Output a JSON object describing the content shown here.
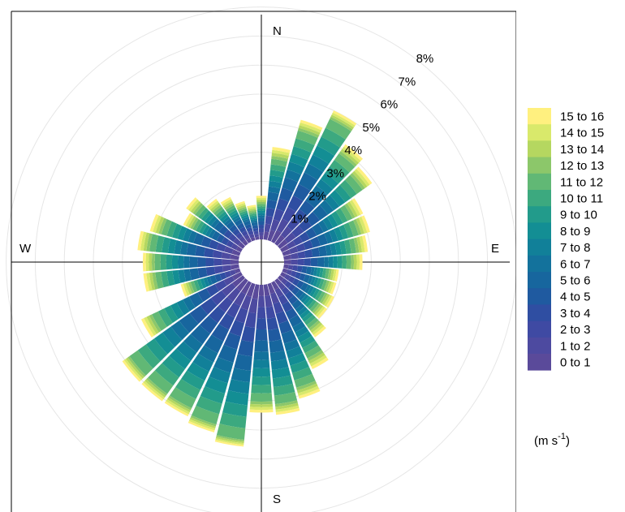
{
  "chart_data": {
    "type": "windrose",
    "compass_labels": {
      "north": "N",
      "south": "S",
      "east": "E",
      "west": "W"
    },
    "radial_axis": {
      "ticks": [
        1,
        2,
        3,
        4,
        5,
        6,
        7,
        8
      ],
      "labels": [
        "1%",
        "2%",
        "3%",
        "4%",
        "5%",
        "6%",
        "7%",
        "8%"
      ],
      "max": 8
    },
    "speed_bins": [
      "0 to 1",
      "1 to 2",
      "2 to 3",
      "3 to 4",
      "4 to 5",
      "5 to 6",
      "6 to 7",
      "7 to 8",
      "8 to 9",
      "9 to 10",
      "10 to 11",
      "11 to 12",
      "12 to 13",
      "13 to 14",
      "14 to 15",
      "15 to 16"
    ],
    "colors": [
      "#5a4a9a",
      "#4d4aa0",
      "#3f4aa3",
      "#2f4ea2",
      "#1f5aa0",
      "#17669e",
      "#13729c",
      "#118099",
      "#138e94",
      "#229b8b",
      "#3ca97f",
      "#61b875",
      "#8cc76a",
      "#b5d760",
      "#d9e96b",
      "#fff07f"
    ],
    "unit": {
      "prefix": "(m s",
      "exponent": "-1",
      "suffix": ")"
    },
    "directions_deg": [
      0,
      10,
      20,
      30,
      40,
      50,
      60,
      70,
      80,
      90,
      100,
      110,
      120,
      130,
      140,
      150,
      160,
      170,
      180,
      190,
      200,
      210,
      220,
      230,
      240,
      250,
      260,
      270,
      280,
      290,
      300,
      310,
      320,
      330,
      340,
      350
    ],
    "totals_percent": [
      1.5,
      3.2,
      4.3,
      5.0,
      4.2,
      3.9,
      3.1,
      3.1,
      2.9,
      2.7,
      1.9,
      1.9,
      2.0,
      2.0,
      2.4,
      3.3,
      4.1,
      4.5,
      4.4,
      5.6,
      5.3,
      5.1,
      5.1,
      5.1,
      3.8,
      2.1,
      3.3,
      3.3,
      3.5,
      3.2,
      2.2,
      2.4,
      1.9,
      1.7,
      1.4,
      1.2
    ]
  }
}
